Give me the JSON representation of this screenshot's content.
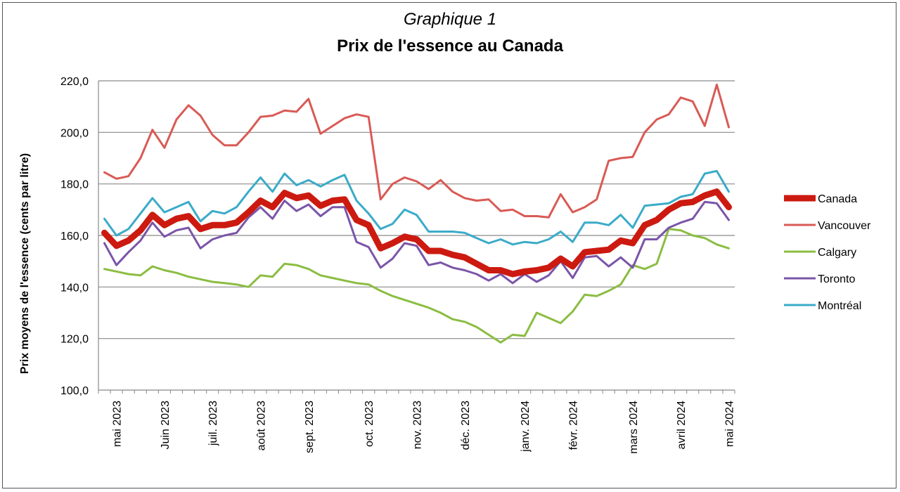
{
  "chart_data": {
    "type": "line",
    "title": "Graphique 1",
    "subtitle": "Prix de l'essence au Canada",
    "ylabel": "Prix moyens de l'essence (cents par litre)",
    "ylim": [
      100,
      220
    ],
    "yticks": [
      "100,0",
      "120,0",
      "140,0",
      "160,0",
      "180,0",
      "200,0",
      "220,0"
    ],
    "ytick_values": [
      100,
      120,
      140,
      160,
      180,
      200,
      220
    ],
    "month_labels": [
      "mai 2023",
      "Juin 2023",
      "juil. 2023",
      "août 2023",
      "sept. 2023",
      "oct. 2023",
      "nov. 2023",
      "déc. 2023",
      "janv. 2024",
      "févr. 2024",
      "mars 2024",
      "avril 2024",
      "mai 2024"
    ],
    "month_label_positions": [
      1,
      5,
      9,
      13,
      17,
      22,
      26,
      30,
      35,
      39,
      44,
      48,
      52
    ],
    "grid": true,
    "legend_position": "right",
    "x_count": 53,
    "series": [
      {
        "name": "Canada",
        "color": "#cc1a10",
        "width": 9,
        "values": [
          161,
          156,
          158,
          162,
          168,
          164,
          166.5,
          167.5,
          162.5,
          164,
          164,
          165,
          169,
          173.5,
          171,
          176.5,
          174.5,
          175.5,
          171.5,
          173.5,
          174,
          166,
          164,
          155,
          157,
          159.5,
          158.5,
          154,
          154,
          152.5,
          151.5,
          149,
          146.5,
          146.5,
          145,
          146,
          146.5,
          147.5,
          151,
          148,
          153.5,
          154,
          154.5,
          158,
          157,
          164,
          166,
          170,
          172.5,
          173,
          175.5,
          177,
          171
        ]
      },
      {
        "name": "Vancouver",
        "color": "#d95a55",
        "width": 3,
        "values": [
          184.5,
          182,
          183,
          190,
          201,
          194,
          205,
          210.5,
          206.5,
          199,
          195,
          195,
          200,
          206,
          206.5,
          208.5,
          208,
          213,
          199.5,
          202.5,
          205.5,
          207,
          206,
          174,
          180,
          182.5,
          181,
          178,
          181.5,
          177,
          174.5,
          173.5,
          174,
          169.5,
          170,
          167.5,
          167.5,
          167,
          176,
          169,
          171,
          174,
          189,
          190,
          190.5,
          200,
          205,
          207,
          213.5,
          212,
          202.5,
          218.5,
          202
        ]
      },
      {
        "name": "Calgary",
        "color": "#8bbd42",
        "width": 3,
        "values": [
          147,
          146,
          145,
          144.5,
          148,
          146.5,
          145.5,
          144,
          143,
          142,
          141.5,
          141,
          140,
          144.5,
          144,
          149,
          148.5,
          147,
          144.5,
          143.5,
          142.5,
          141.5,
          141,
          138.5,
          136.5,
          135,
          133.5,
          132,
          130,
          127.5,
          126.5,
          124.5,
          121.5,
          118.5,
          121.5,
          121,
          130,
          128,
          126,
          130.5,
          137,
          136.5,
          138.5,
          141,
          148.5,
          147,
          149,
          162.5,
          162,
          160,
          159,
          156.5,
          155
        ]
      },
      {
        "name": "Toronto",
        "color": "#7b55a8",
        "width": 3,
        "values": [
          157,
          148.5,
          153.5,
          158,
          165,
          159.5,
          162,
          163,
          155,
          158.5,
          160,
          161,
          167,
          171,
          166.5,
          173.5,
          169.5,
          172,
          167.5,
          171,
          171,
          157.5,
          155.5,
          147.5,
          151,
          157,
          156,
          148.5,
          149.5,
          147.5,
          146.5,
          145,
          142.5,
          145,
          141.5,
          145,
          142,
          144.5,
          150,
          143.5,
          151.5,
          152,
          148,
          151.5,
          147.5,
          158.5,
          158.5,
          163,
          165,
          166.5,
          173,
          172.5,
          166
        ]
      },
      {
        "name": "Montréal",
        "color": "#3aabc8",
        "width": 3,
        "values": [
          166.5,
          160,
          162.5,
          168.5,
          174.5,
          169,
          171,
          173,
          165.5,
          169.5,
          168.5,
          171,
          177,
          182.5,
          177,
          184,
          179.5,
          181.5,
          179,
          181.5,
          183.5,
          173.5,
          168.5,
          162.5,
          164.5,
          170,
          168,
          161.5,
          161.5,
          161.5,
          161,
          159,
          157,
          158.5,
          156.5,
          157.5,
          157,
          158.5,
          161.5,
          157.5,
          165,
          165,
          164,
          168,
          163,
          171.5,
          172,
          172.5,
          175,
          176,
          184,
          185,
          177
        ]
      }
    ]
  }
}
